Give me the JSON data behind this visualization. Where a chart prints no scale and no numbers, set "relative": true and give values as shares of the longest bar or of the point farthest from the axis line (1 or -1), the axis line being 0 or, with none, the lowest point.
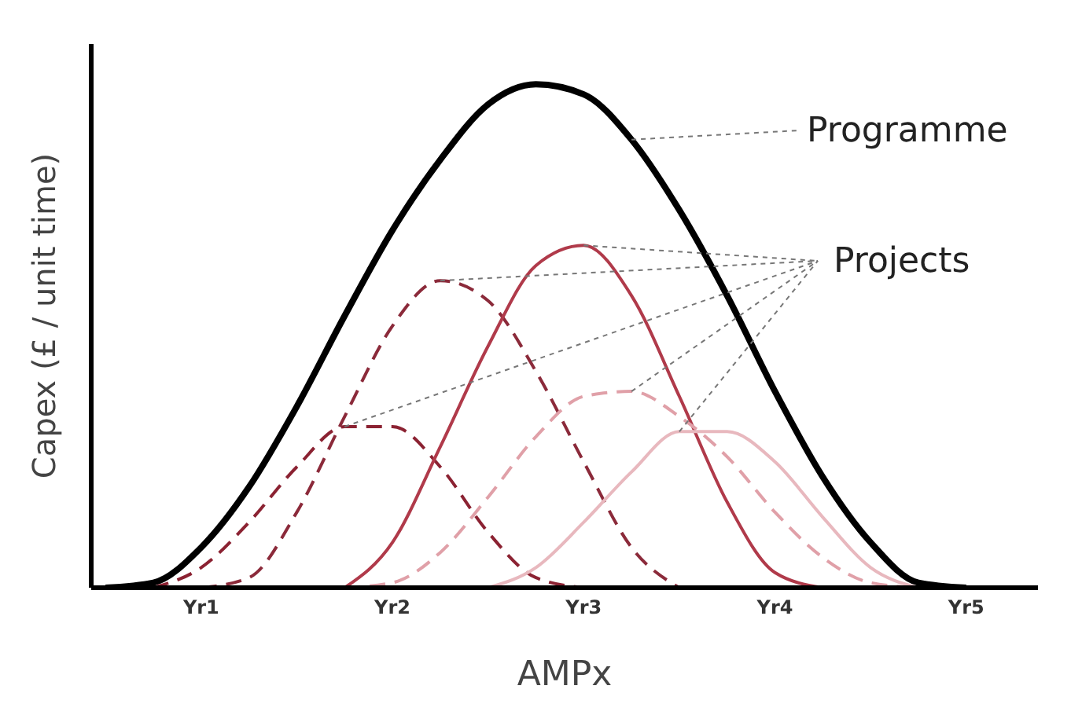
{
  "chart_data": {
    "type": "line",
    "relative": true,
    "xlabel": "AMPx",
    "ylabel": "Capex (£ / unit time)",
    "annotations": [
      "Projects"
    ],
    "categories": [
      null,
      null,
      "Yr1",
      null,
      null,
      null,
      "Yr2",
      null,
      null,
      null,
      "Yr3",
      null,
      null,
      null,
      "Yr4",
      null,
      null,
      null,
      "Yr5",
      null
    ],
    "series": [
      {
        "name": "Programme",
        "color": "#000000",
        "line_style": "solid",
        "values": [
          0,
          0.01,
          0.08,
          0.2,
          0.36,
          0.54,
          0.71,
          0.85,
          0.96,
          1,
          0.98,
          0.89,
          0.75,
          0.58,
          0.39,
          0.22,
          0.09,
          0.01,
          0,
          null
        ]
      },
      {
        "color": "#8b2232",
        "line_style": "dashed",
        "values": [
          null,
          0,
          0.04,
          0.13,
          0.24,
          0.32,
          0.32,
          0.24,
          0.11,
          0.02,
          0,
          null,
          null,
          null,
          null,
          null,
          null,
          null,
          null,
          null
        ]
      },
      {
        "color": "#8b2a3a",
        "line_style": "dashed",
        "values": [
          null,
          null,
          0,
          0.02,
          0.15,
          0.34,
          0.52,
          0.61,
          0.57,
          0.43,
          0.25,
          0.08,
          0,
          null,
          null,
          null,
          null,
          null,
          null,
          null
        ]
      },
      {
        "color": "#b03a4a",
        "line_style": "solid",
        "values": [
          null,
          null,
          null,
          null,
          null,
          0,
          0.09,
          0.28,
          0.48,
          0.64,
          0.68,
          0.58,
          0.38,
          0.17,
          0.03,
          0,
          null,
          null,
          null,
          null
        ]
      },
      {
        "color": "#e0a0a8",
        "line_style": "dashed",
        "values": [
          null,
          null,
          null,
          null,
          null,
          0,
          0.01,
          0.07,
          0.18,
          0.3,
          0.38,
          0.39,
          0.34,
          0.26,
          0.15,
          0.06,
          0.01,
          0,
          null,
          null
        ]
      },
      {
        "color": "#e8b8be",
        "line_style": "solid",
        "values": [
          null,
          null,
          null,
          null,
          null,
          null,
          null,
          null,
          0,
          0.04,
          0.13,
          0.23,
          0.31,
          0.31,
          0.25,
          0.14,
          0.04,
          0,
          null,
          null
        ]
      }
    ]
  }
}
